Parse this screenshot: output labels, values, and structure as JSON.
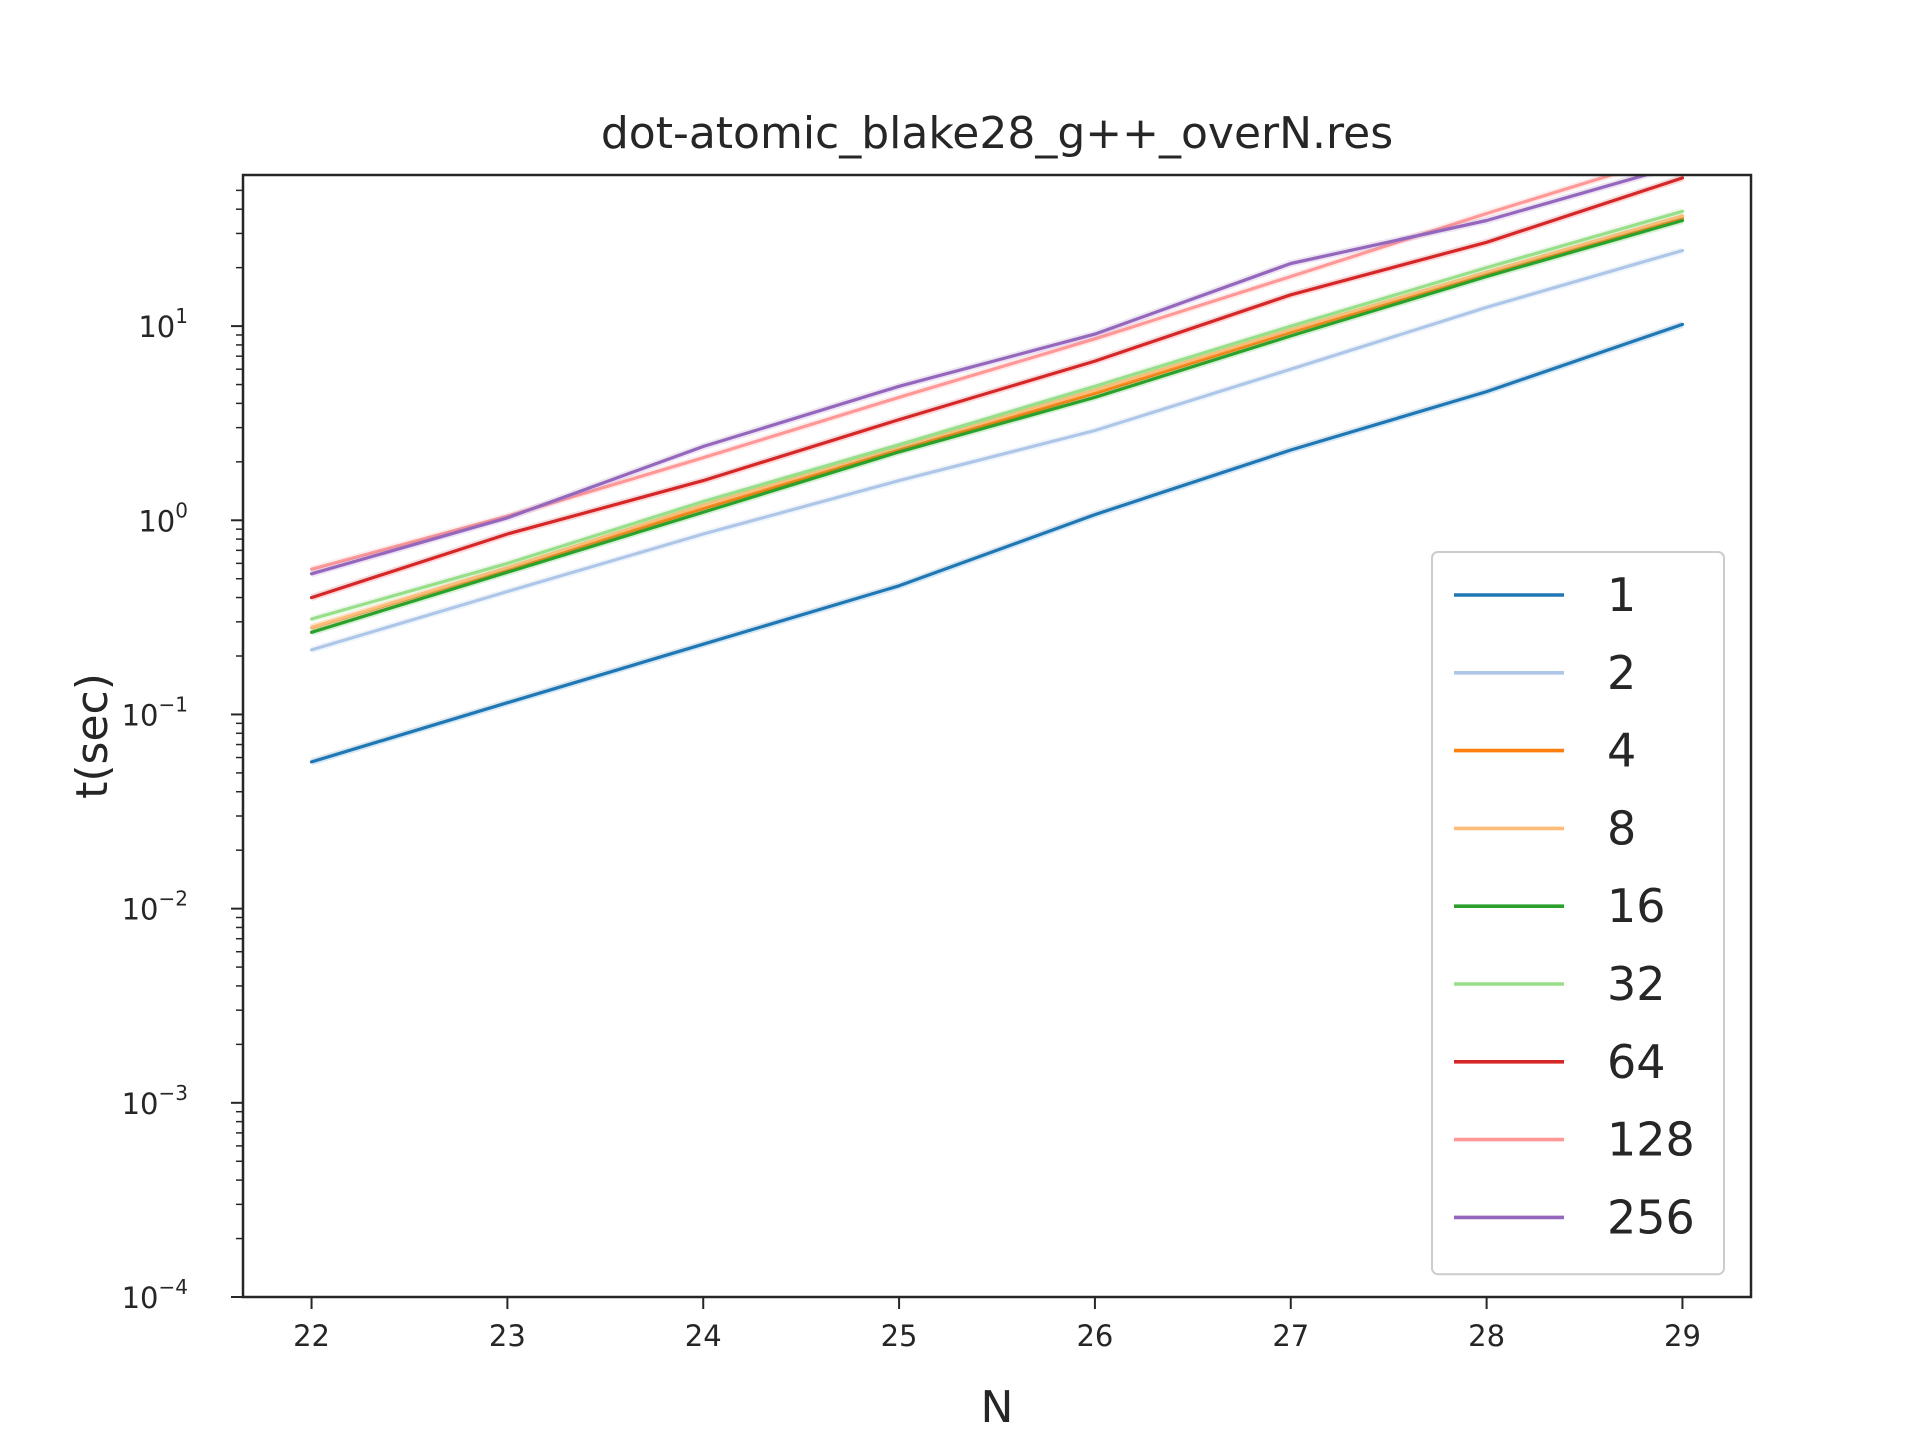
{
  "chart_data": {
    "type": "line",
    "title": "dot-atomic_blake28_g++_overN.res",
    "xlabel": "N",
    "ylabel": "t(sec)",
    "yscale": "log",
    "xlim": [
      21.65,
      29.35
    ],
    "ylim": [
      0.0001,
      60
    ],
    "x": [
      22,
      23,
      24,
      25,
      26,
      27,
      28,
      29
    ],
    "x_ticks": [
      "22",
      "23",
      "24",
      "25",
      "26",
      "27",
      "28",
      "29"
    ],
    "y_ticks": [
      {
        "base": "10",
        "exp": "−4",
        "value": 0.0001
      },
      {
        "base": "10",
        "exp": "−3",
        "value": 0.001
      },
      {
        "base": "10",
        "exp": "−2",
        "value": 0.01
      },
      {
        "base": "10",
        "exp": "−1",
        "value": 0.1
      },
      {
        "base": "10",
        "exp": "0",
        "value": 1
      },
      {
        "base": "10",
        "exp": "1",
        "value": 10
      }
    ],
    "grid": false,
    "legend_position": "lower-right",
    "series": [
      {
        "name": "1",
        "color": "#1f77b4",
        "values": [
          0.057,
          0.115,
          0.23,
          0.46,
          1.07,
          2.3,
          4.6,
          10.2
        ]
      },
      {
        "name": "2",
        "color": "#aec7e8",
        "values": [
          0.215,
          0.43,
          0.85,
          1.6,
          2.9,
          6.0,
          12.5,
          24.5
        ]
      },
      {
        "name": "4",
        "color": "#ff7f0e",
        "values": [
          0.28,
          0.56,
          1.15,
          2.3,
          4.5,
          9.3,
          18.5,
          36
        ]
      },
      {
        "name": "8",
        "color": "#ffbb78",
        "values": [
          0.28,
          0.57,
          1.2,
          2.4,
          4.7,
          9.6,
          19,
          37
        ]
      },
      {
        "name": "16",
        "color": "#2ca02c",
        "values": [
          0.265,
          0.54,
          1.1,
          2.25,
          4.3,
          8.9,
          18,
          35
        ]
      },
      {
        "name": "32",
        "color": "#98df8a",
        "values": [
          0.31,
          0.6,
          1.25,
          2.45,
          4.9,
          10,
          20,
          39
        ]
      },
      {
        "name": "64",
        "color": "#d62728",
        "values": [
          0.4,
          0.85,
          1.6,
          3.3,
          6.6,
          14.5,
          27,
          58
        ]
      },
      {
        "name": "128",
        "color": "#ff9896",
        "values": [
          0.56,
          1.05,
          2.1,
          4.3,
          8.6,
          18,
          38,
          78
        ]
      },
      {
        "name": "256",
        "color": "#9467bd",
        "values": [
          0.53,
          1.03,
          2.4,
          4.9,
          9.1,
          21,
          35,
          68
        ]
      }
    ]
  }
}
